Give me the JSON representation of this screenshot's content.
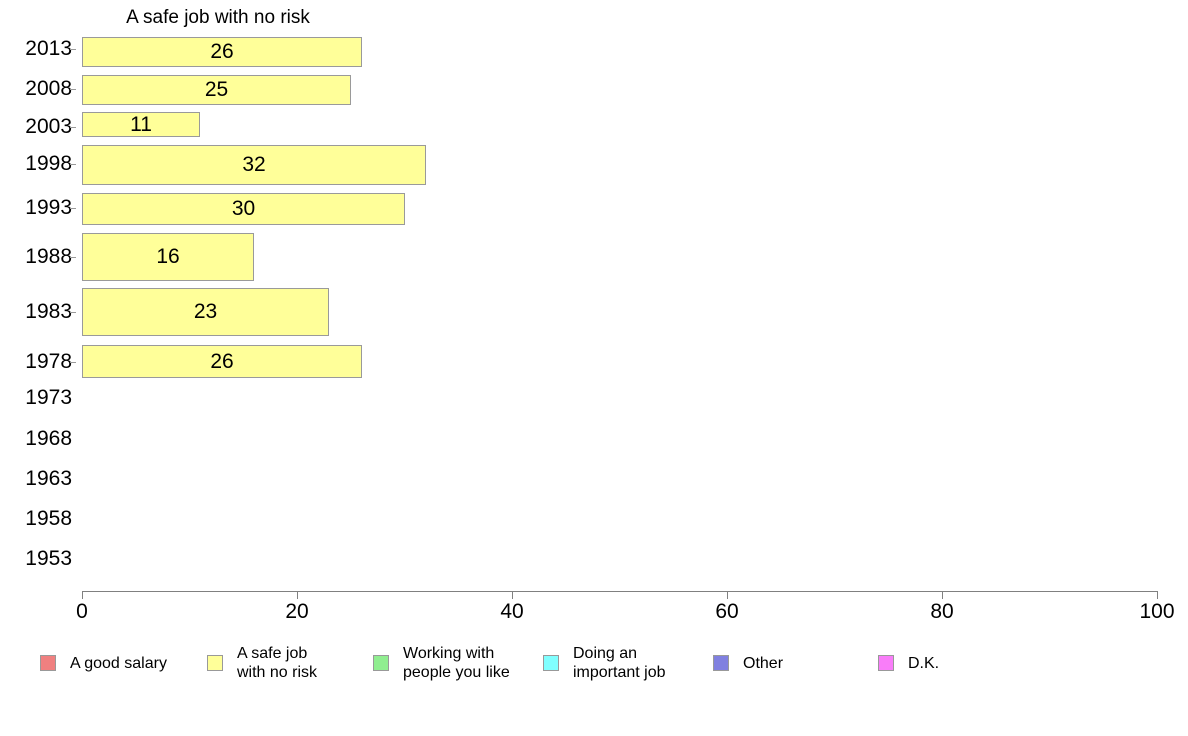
{
  "chart_data": {
    "type": "bar",
    "orientation": "horizontal",
    "title": "A safe job with no risk",
    "series_name": "A safe job with no risk",
    "categories": [
      "2013",
      "2008",
      "2003",
      "1998",
      "1993",
      "1988",
      "1983",
      "1978",
      "1973",
      "1968",
      "1963",
      "1958",
      "1953"
    ],
    "values": [
      26,
      25,
      11,
      32,
      30,
      16,
      23,
      26,
      null,
      null,
      null,
      null,
      null
    ],
    "value_labels_shown": true,
    "xlim": [
      0,
      100
    ],
    "x_ticks": [
      "0",
      "20",
      "40",
      "60",
      "80",
      "100"
    ],
    "x_tick_values": [
      0,
      20,
      40,
      60,
      80,
      100
    ],
    "grid": false,
    "bar_color": "#FFFF99",
    "bar_border_color": "#9A9A9A",
    "axis_color": "#808080",
    "legend_position": "bottom"
  },
  "legend": {
    "items": [
      {
        "label": "A good salary",
        "color": "#F08080"
      },
      {
        "label": "A safe job\nwith no risk",
        "color": "#FFFF99"
      },
      {
        "label": "Working with\npeople you like",
        "color": "#90EE90"
      },
      {
        "label": "Doing an\nimportant job",
        "color": "#80FFFF"
      },
      {
        "label": "Other",
        "color": "#8080E0"
      },
      {
        "label": "D.K.",
        "color": "#F97DF9"
      }
    ]
  }
}
